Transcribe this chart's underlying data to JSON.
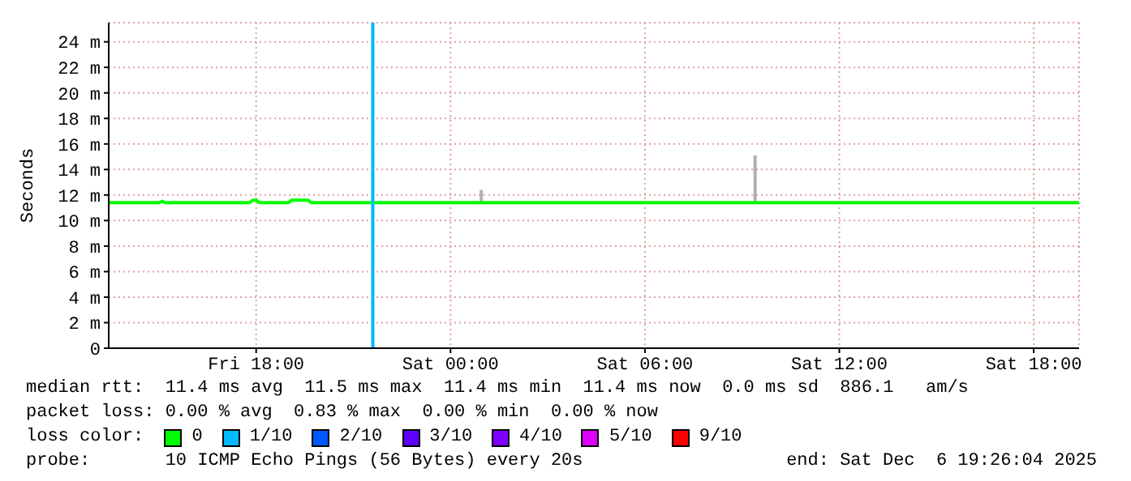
{
  "chart_data": {
    "type": "line",
    "ylabel": "Seconds",
    "legend_title": "loss color:",
    "legend": "bottom",
    "grid": true,
    "marker": "none",
    "xlim": [
      "2025-12-05T13:27",
      "2025-12-06T19:24"
    ],
    "xticks": [
      {
        "value": "2025-12-05T18:00",
        "label": "Fri 18:00"
      },
      {
        "value": "2025-12-06T00:00",
        "label": "Sat 00:00"
      },
      {
        "value": "2025-12-06T06:00",
        "label": "Sat 06:00"
      },
      {
        "value": "2025-12-06T12:00",
        "label": "Sat 12:00"
      },
      {
        "value": "2025-12-06T18:00",
        "label": "Sat 18:00"
      }
    ],
    "ylim": [
      0,
      25.5
    ],
    "yticks": [
      0,
      {
        "value": 2,
        "label": "2 m"
      },
      {
        "value": 4,
        "label": "4 m"
      },
      {
        "value": 6,
        "label": "6 m"
      },
      {
        "value": 8,
        "label": "8 m"
      },
      {
        "value": 10,
        "label": "10 m"
      },
      {
        "value": 12,
        "label": "12 m"
      },
      {
        "value": 14,
        "label": "14 m"
      },
      {
        "value": 16,
        "label": "16 m"
      },
      {
        "value": 18,
        "label": "18 m"
      },
      {
        "value": 20,
        "label": "20 m"
      },
      {
        "value": 22,
        "label": "22 m"
      },
      {
        "value": 24,
        "label": "24 m"
      }
    ],
    "series": [
      {
        "color": "#b0b0b0",
        "x": [
          "2025-12-06T00:57",
          "2025-12-06T00:57",
          "2025-12-06T05:00",
          "2025-12-06T09:24",
          "2025-12-06T09:24"
        ],
        "values": [
          11.4,
          12.4,
          null,
          11.4,
          15.1
        ]
      },
      {
        "name": "0",
        "color": "#00ff00",
        "x": [
          "2025-12-05T13:27",
          "2025-12-05T15:00",
          "2025-12-05T15:06",
          "2025-12-05T15:12",
          "2025-12-05T17:00",
          "2025-12-05T17:48",
          "2025-12-05T17:54",
          "2025-12-05T18:00",
          "2025-12-05T18:06",
          "2025-12-05T19:00",
          "2025-12-05T19:06",
          "2025-12-05T19:36",
          "2025-12-05T19:42",
          "2025-12-06T19:24"
        ],
        "values": [
          11.4,
          11.4,
          11.5,
          11.4,
          11.4,
          11.4,
          11.6,
          11.6,
          11.4,
          11.4,
          11.6,
          11.6,
          11.4,
          11.4
        ]
      },
      {
        "name": "1/10",
        "color": "#00b8ff",
        "x": [
          "2025-12-05T21:36",
          "2025-12-05T21:36"
        ],
        "values": [
          0,
          25.5
        ]
      },
      {
        "name": "2/10",
        "color": "#0059ff"
      },
      {
        "name": "3/10",
        "color": "#5e00ff"
      },
      {
        "name": "4/10",
        "color": "#7e00ff"
      },
      {
        "name": "5/10",
        "color": "#dd00ff"
      },
      {
        "name": "9/10",
        "color": "#ff0000"
      }
    ],
    "annotations": [
      "median rtt:  11.4 ms avg  11.5 ms max  11.4 ms min  11.4 ms now  0.0 ms sd  886.1   am/s",
      "packet loss: 0.00 % avg  0.83 % max  0.00 % min  0.00 % now",
      "probe:       10 ICMP Echo Pings (56 Bytes) every 20s",
      "end: Sat Dec  6 19:26:04 2025"
    ]
  }
}
